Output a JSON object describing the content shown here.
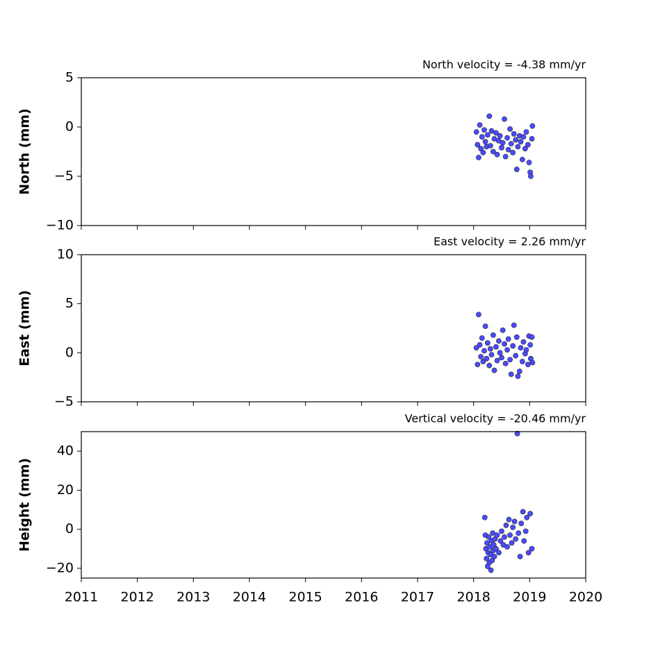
{
  "chart_data": [
    {
      "type": "scatter",
      "title": "North velocity = -4.38 mm/yr",
      "ylabel": "North (mm)",
      "color": "#4b4bff",
      "xlim": [
        2011,
        2020
      ],
      "xticks": [
        2011,
        2012,
        2013,
        2014,
        2015,
        2016,
        2017,
        2018,
        2019,
        2020
      ],
      "ylim": [
        -10,
        5
      ],
      "yticks": [
        {
          "value": -10,
          "label": "−10"
        },
        {
          "value": -5,
          "label": "−5"
        },
        0,
        5
      ],
      "x": [
        2018.05,
        2018.07,
        2018.09,
        2018.11,
        2018.13,
        2018.15,
        2018.17,
        2018.19,
        2018.21,
        2018.23,
        2018.25,
        2018.28,
        2018.3,
        2018.32,
        2018.35,
        2018.37,
        2018.4,
        2018.42,
        2018.45,
        2018.47,
        2018.5,
        2018.52,
        2018.55,
        2018.57,
        2018.6,
        2018.62,
        2018.65,
        2018.67,
        2018.7,
        2018.72,
        2018.75,
        2018.77,
        2018.79,
        2018.82,
        2018.84,
        2018.87,
        2018.89,
        2018.92,
        2018.94,
        2018.97,
        2018.99,
        2019.01,
        2019.02,
        2019.04,
        2019.05
      ],
      "values": [
        -0.5,
        -1.8,
        -3.1,
        0.2,
        -2.2,
        -1.0,
        -2.6,
        -0.3,
        -1.5,
        -2.0,
        -0.8,
        1.1,
        -1.9,
        -0.4,
        -2.5,
        -1.2,
        -0.6,
        -2.8,
        -1.4,
        -0.9,
        -2.1,
        -1.6,
        0.8,
        -3.0,
        -1.1,
        -2.3,
        -0.2,
        -1.7,
        -2.6,
        -0.7,
        -1.3,
        -4.3,
        -2.0,
        -0.9,
        -1.5,
        -3.3,
        -1.0,
        -2.2,
        -0.5,
        -1.8,
        -3.6,
        -4.6,
        -5.0,
        -1.2,
        0.1
      ]
    },
    {
      "type": "scatter",
      "title": "East velocity = 2.26 mm/yr",
      "ylabel": "East (mm)",
      "color": "#4b4bff",
      "xlim": [
        2011,
        2020
      ],
      "xticks": [
        2011,
        2012,
        2013,
        2014,
        2015,
        2016,
        2017,
        2018,
        2019,
        2020
      ],
      "ylim": [
        -5,
        10
      ],
      "yticks": [
        {
          "value": -5,
          "label": "−5"
        },
        0,
        5,
        10
      ],
      "x": [
        2018.05,
        2018.07,
        2018.09,
        2018.11,
        2018.13,
        2018.15,
        2018.17,
        2018.19,
        2018.21,
        2018.23,
        2018.25,
        2018.28,
        2018.3,
        2018.32,
        2018.35,
        2018.37,
        2018.4,
        2018.42,
        2018.45,
        2018.47,
        2018.5,
        2018.52,
        2018.55,
        2018.57,
        2018.6,
        2018.62,
        2018.65,
        2018.67,
        2018.7,
        2018.72,
        2018.75,
        2018.77,
        2018.79,
        2018.82,
        2018.84,
        2018.87,
        2018.89,
        2018.92,
        2018.94,
        2018.97,
        2018.99,
        2019.01,
        2019.02,
        2019.04,
        2019.05
      ],
      "values": [
        0.5,
        -1.2,
        3.9,
        0.8,
        -0.4,
        1.5,
        -0.9,
        0.2,
        2.7,
        -0.6,
        1.0,
        -1.3,
        0.4,
        -0.2,
        1.8,
        -1.8,
        0.6,
        -0.8,
        1.2,
        0.0,
        -0.5,
        2.3,
        0.9,
        -1.1,
        0.3,
        1.4,
        -0.7,
        -2.2,
        0.7,
        2.8,
        -0.3,
        1.6,
        -2.4,
        -1.9,
        0.5,
        -0.9,
        1.1,
        -0.1,
        0.3,
        -1.2,
        1.7,
        0.8,
        -0.6,
        1.6,
        -1.0
      ]
    },
    {
      "type": "scatter",
      "title": "Vertical velocity = -20.46 mm/yr",
      "ylabel": "Height (mm)",
      "color": "#4b4bff",
      "xlim": [
        2011,
        2020
      ],
      "xticks": [
        2011,
        2012,
        2013,
        2014,
        2015,
        2016,
        2017,
        2018,
        2019,
        2020
      ],
      "ylim": [
        -25,
        50
      ],
      "yticks": [
        {
          "value": -20,
          "label": "−20"
        },
        0,
        20,
        40
      ],
      "x": [
        2018.2,
        2018.21,
        2018.22,
        2018.23,
        2018.24,
        2018.25,
        2018.26,
        2018.27,
        2018.28,
        2018.29,
        2018.3,
        2018.31,
        2018.32,
        2018.33,
        2018.34,
        2018.35,
        2018.36,
        2018.37,
        2018.38,
        2018.4,
        2018.42,
        2018.45,
        2018.48,
        2018.5,
        2018.53,
        2018.55,
        2018.58,
        2018.6,
        2018.63,
        2018.65,
        2018.68,
        2018.7,
        2018.73,
        2018.75,
        2018.78,
        2018.8,
        2018.83,
        2018.85,
        2018.88,
        2018.9,
        2018.93,
        2018.95,
        2018.98,
        2019.01,
        2019.04
      ],
      "values": [
        6,
        -3,
        -10,
        -15,
        -7,
        -19,
        -12,
        -4,
        -17,
        -9,
        -13,
        -21,
        -6,
        -16,
        -2,
        -11,
        -8,
        -14,
        -5,
        -10,
        -3,
        -12,
        -6,
        -1,
        -8,
        -4,
        2,
        -9,
        5,
        -3,
        -7,
        1,
        4,
        -5,
        49,
        -2,
        -14,
        3,
        9,
        -6,
        -1,
        6,
        -12,
        8,
        -10
      ]
    }
  ]
}
